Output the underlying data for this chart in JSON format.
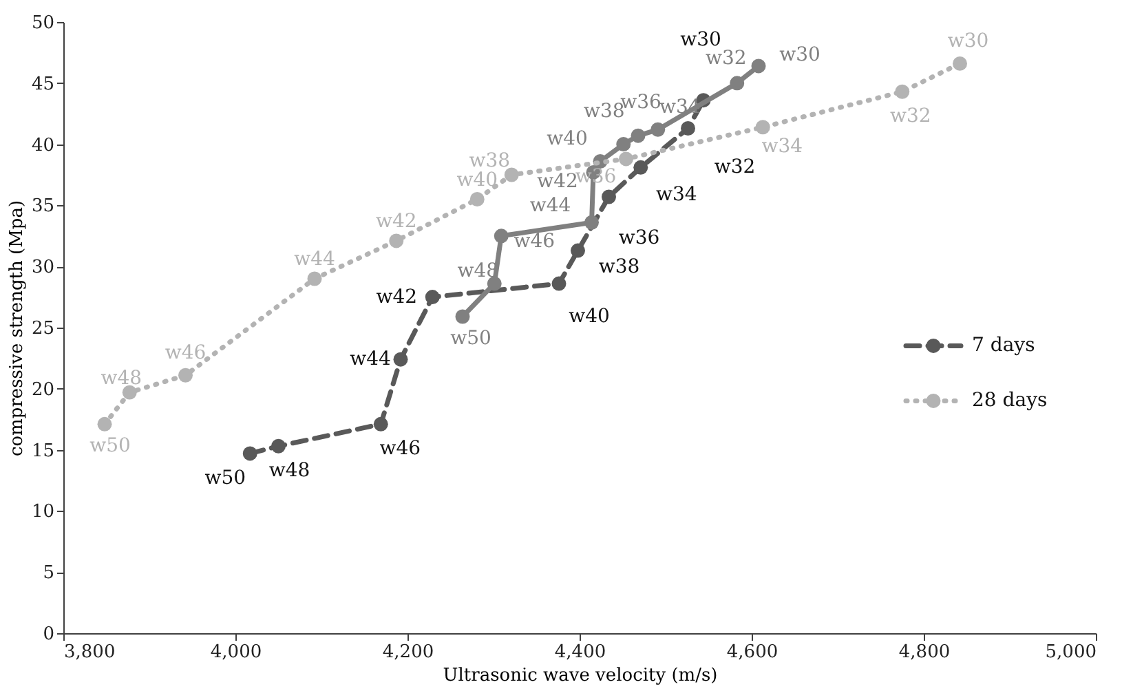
{
  "chart_data": {
    "type": "line",
    "xlabel": "Ultrasonic wave velocity (m/s)",
    "ylabel": "compressive strength (Mpa)",
    "xlim": [
      3800,
      5000
    ],
    "xticks": [
      {
        "value": 3800,
        "label": "3,800"
      },
      {
        "value": 4000,
        "label": "4,000"
      },
      {
        "value": 4200,
        "label": "4,200"
      },
      {
        "value": 4400,
        "label": "4,400"
      },
      {
        "value": 4600,
        "label": "4,600"
      },
      {
        "value": 4800,
        "label": "4,800"
      },
      {
        "value": 5000,
        "label": "5,000"
      }
    ],
    "ylim": [
      0,
      50
    ],
    "yticks": [
      0,
      5,
      10,
      15,
      20,
      25,
      30,
      35,
      40,
      45,
      50
    ],
    "grid": false,
    "legend": "right",
    "marker": "circle",
    "series": [
      {
        "name": "7 days",
        "color": "#595959",
        "line_style": "dashed",
        "x": [
          4017,
          4050,
          4169,
          4192,
          4229,
          4376,
          4398,
          4434,
          4471,
          4526,
          4544
        ],
        "values": [
          14.7,
          15.3,
          17.1,
          22.4,
          27.5,
          28.6,
          31.3,
          35.7,
          38.1,
          41.3,
          43.6
        ],
        "value_labels": [
          "w50",
          "w48",
          "w46",
          "w44",
          "w42",
          "w40",
          "w38",
          "w36",
          "w34",
          "w32",
          "w30"
        ]
      },
      {
        "color": "#808080",
        "line_style": "solid",
        "x": [
          4264,
          4301,
          4309,
          4414,
          4416,
          4424,
          4451,
          4468,
          4491,
          4583,
          4608
        ],
        "values": [
          25.9,
          28.6,
          32.5,
          33.6,
          37.7,
          38.6,
          40.0,
          40.7,
          41.2,
          45.0,
          46.4
        ],
        "value_labels": [
          "w50",
          "w48",
          "w46",
          "w44",
          "w42",
          "w40",
          "w38",
          "w36",
          "w34",
          "w32",
          "w30"
        ]
      },
      {
        "name": "28 days",
        "color": "#b3b3b3",
        "line_style": "dotted",
        "x": [
          3848,
          3877,
          3942,
          4092,
          4187,
          4281,
          4321,
          4454,
          4613,
          4775,
          4842
        ],
        "values": [
          17.1,
          19.7,
          21.1,
          29.0,
          32.1,
          35.5,
          37.5,
          38.8,
          41.4,
          44.3,
          46.6
        ],
        "value_labels": [
          "w50",
          "w48",
          "w46",
          "w44",
          "w42",
          "w40",
          "w38",
          "w36",
          "w34",
          "w32",
          "w30"
        ]
      }
    ]
  }
}
